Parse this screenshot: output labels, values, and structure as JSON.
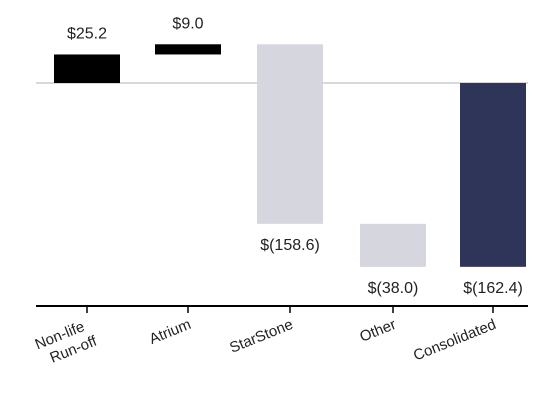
{
  "chart_data": {
    "type": "bar",
    "subtype": "waterfall",
    "title": "",
    "xlabel": "",
    "ylabel": "",
    "categories": [
      "Non-life Run-off",
      "Atrium",
      "StarStone",
      "Other",
      "Consolidated"
    ],
    "tick_lines": [
      [
        "Non-life",
        "Run-off"
      ],
      [
        "Atrium"
      ],
      [
        "StarStone"
      ],
      [
        "Other"
      ],
      [
        "Consolidated"
      ]
    ],
    "values": [
      25.2,
      9.0,
      -158.6,
      -38.0,
      -162.4
    ],
    "display_labels": [
      "$25.2",
      "$9.0",
      "$(158.6)",
      "$(38.0)",
      "$(162.4)"
    ],
    "bar_kinds": [
      "delta",
      "delta",
      "delta",
      "delta",
      "total"
    ],
    "colors": {
      "positive": "#000000",
      "negative": "#d6d6de",
      "total": "#2e3558",
      "axis": "#000000",
      "zero_line": "#cccccc"
    },
    "ylim": [
      -170,
      40
    ],
    "grid": false,
    "legend": "none"
  }
}
